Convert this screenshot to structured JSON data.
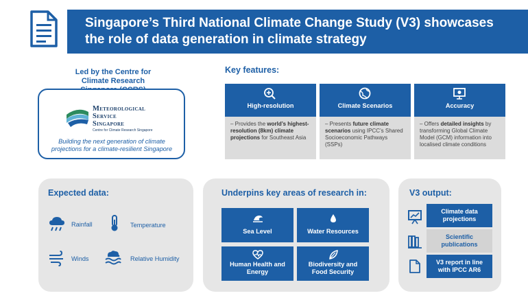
{
  "header": {
    "title_line1": "Singapore’s Third National Climate Change Study (V3) showcases",
    "title_line2": "the role of data generation in climate strategy"
  },
  "ccrs": {
    "heading_line1": "Led by the Centre for",
    "heading_line2": "Climate Research",
    "heading_line3": "Singapore (CCRS)",
    "logo_line1": "Meteorological",
    "logo_line2": "Service",
    "logo_line3": "Singapore",
    "logo_sub": "Centre for Climate Research Singapore",
    "tagline_line1": "Building the next generation of climate",
    "tagline_line2": "projections for a climate-resilient Singapore"
  },
  "key_features": {
    "heading": "Key features:",
    "items": [
      {
        "icon": "magnifier-plus-icon",
        "label": "High-resolution",
        "body_pre": "Provides the ",
        "body_bold": "world’s highest-resolution (8km) climate projections",
        "body_post": " for Southeast Asia"
      },
      {
        "icon": "globe-icon",
        "label": "Climate Scenarios",
        "body_pre": "Presents ",
        "body_bold": "future climate scenarios",
        "body_post": " using IPCC’s Shared Socioeconomic Pathways (SSPs)"
      },
      {
        "icon": "presentation-board-icon",
        "label": "Accuracy",
        "body_pre": "Offers ",
        "body_bold": "detailed insights",
        "body_post": " by transforming Global Climate Model (GCM) information into localised climate conditions"
      }
    ]
  },
  "expected_data": {
    "title": "Expected data:",
    "items": [
      {
        "icon": "rain-cloud-icon",
        "label": "Rainfall"
      },
      {
        "icon": "thermometer-icon",
        "label": "Temperature"
      },
      {
        "icon": "wind-icon",
        "label": "Winds"
      },
      {
        "icon": "humidity-waves-icon",
        "label": "Relative Humidity"
      }
    ]
  },
  "research": {
    "title": "Underpins key areas of research in:",
    "items": [
      {
        "icon": "wave-icon",
        "label_line1": "Sea Level",
        "label_line2": ""
      },
      {
        "icon": "water-drop-icon",
        "label_line1": "Water Resources",
        "label_line2": ""
      },
      {
        "icon": "heart-pulse-icon",
        "label_line1": "Human Health and",
        "label_line2": "Energy"
      },
      {
        "icon": "leaf-icon",
        "label_line1": "Biodiversity and",
        "label_line2": "Food Security"
      }
    ]
  },
  "output": {
    "title": "V3 output:",
    "items": [
      {
        "icon": "chart-board-icon",
        "label_line1": "Climate data",
        "label_line2": "projections"
      },
      {
        "icon": "books-icon",
        "label_line1": "Scientific",
        "label_line2": "publications"
      },
      {
        "icon": "document-icon",
        "label_line1": "V3 report in line",
        "label_line2": "with IPCC AR6"
      }
    ]
  },
  "colors": {
    "brand_blue": "#1d5fa6",
    "panel_grey": "#e6e6e6",
    "feature_grey": "#dcdcdc"
  }
}
